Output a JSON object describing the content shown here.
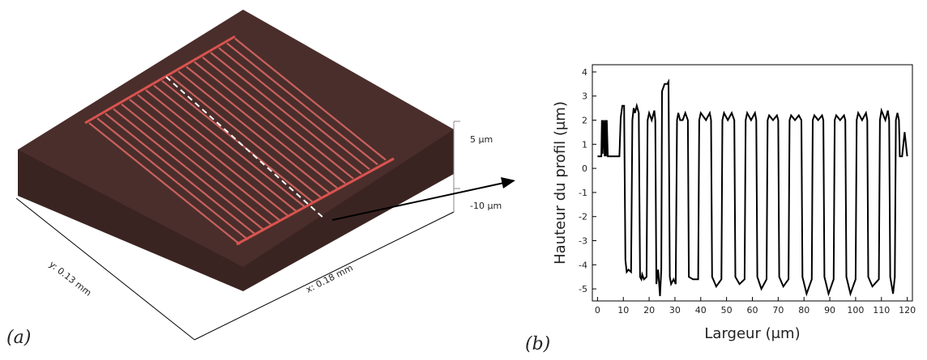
{
  "panel_a": {
    "label": "(a)",
    "scale_top": "5 µm",
    "scale_bottom": "-10 µm",
    "x_size": "x: 0.18 mm",
    "y_size": "y: 0.13 mm"
  },
  "panel_b": {
    "label": "(b)"
  },
  "chart_data": {
    "type": "line",
    "color": "#000000",
    "xlabel": "Largeur (μm)",
    "ylabel": "Hauteur du profil (μm)",
    "xlim": [
      -2,
      122
    ],
    "ylim": [
      -5.5,
      4.3
    ],
    "xticks": [
      0,
      10,
      20,
      30,
      40,
      50,
      60,
      70,
      80,
      90,
      100,
      110,
      120
    ],
    "yticks": [
      -5,
      -4,
      -3,
      -2,
      -1,
      0,
      1,
      2,
      3,
      4
    ],
    "x": [
      0,
      1.5,
      1.7,
      2.0,
      2.3,
      2.8,
      3.0,
      3.3,
      3.6,
      4.0,
      8.5,
      9.0,
      9.6,
      10.3,
      10.8,
      11.3,
      12,
      13,
      13.5,
      14,
      14.5,
      15.2,
      16,
      16.5,
      17,
      17.3,
      18,
      19,
      19.4,
      20.0,
      21,
      22,
      22.4,
      22.8,
      23.5,
      24.2,
      24.7,
      25,
      26,
      27,
      27.5,
      28,
      28.5,
      29.5,
      30.3,
      30.8,
      31.3,
      32,
      33,
      34,
      35,
      35.4,
      37,
      39,
      39.4,
      40,
      42,
      43.5,
      44,
      44.4,
      46,
      48,
      48.4,
      49,
      50.5,
      52,
      53,
      53.4,
      55,
      57,
      57.4,
      58,
      59.5,
      61,
      61.5,
      61.9,
      63.5,
      65.5,
      65.9,
      66.5,
      68,
      69.5,
      70,
      70.4,
      72,
      74,
      74.4,
      75,
      76.5,
      78,
      79,
      79.4,
      81,
      83,
      83.4,
      84,
      85.5,
      87,
      87.5,
      87.9,
      89.5,
      91.5,
      91.9,
      92.5,
      94,
      95.5,
      96,
      96.4,
      98,
      100,
      100.4,
      101,
      102.5,
      104,
      104.5,
      104.9,
      106.5,
      109,
      109.4,
      110,
      111.5,
      112.5,
      113,
      113.4,
      114.5,
      115.2,
      115.6,
      116.2,
      116.8,
      117.1,
      118,
      119,
      120
    ],
    "values": [
      0.5,
      0.5,
      2.0,
      0.6,
      2.0,
      0.5,
      2.0,
      0.5,
      2.0,
      0.5,
      0.5,
      2.1,
      2.6,
      2.6,
      -3.8,
      -4.3,
      -4.2,
      -4.3,
      2.0,
      2.5,
      2.3,
      2.6,
      2.3,
      -4.5,
      -4.6,
      -4.4,
      -4.6,
      -4.5,
      2.0,
      2.3,
      2.0,
      2.4,
      2.0,
      -4.8,
      -4.2,
      -5.3,
      -4.2,
      3.2,
      3.5,
      3.5,
      3.6,
      -4.5,
      -4.8,
      -4.6,
      -4.8,
      2.0,
      2.3,
      2.0,
      2.0,
      2.3,
      2.0,
      -4.5,
      -4.6,
      -4.6,
      2.0,
      2.3,
      2.0,
      2.3,
      2.0,
      -4.5,
      -4.9,
      -4.6,
      2.0,
      2.3,
      2.0,
      2.3,
      2.0,
      -4.5,
      -4.8,
      -4.6,
      2.0,
      2.3,
      2.0,
      2.3,
      2.0,
      -4.5,
      -5.0,
      -4.6,
      2.0,
      2.2,
      2.0,
      2.2,
      2.0,
      -4.5,
      -4.9,
      -4.6,
      2.0,
      2.2,
      2.0,
      2.2,
      2.0,
      -4.5,
      -5.2,
      -4.6,
      2.0,
      2.2,
      2.0,
      2.2,
      2.0,
      -4.5,
      -5.2,
      -4.6,
      2.0,
      2.2,
      2.0,
      2.2,
      2.0,
      -4.5,
      -5.2,
      -4.6,
      2.0,
      2.3,
      2.0,
      2.3,
      2.0,
      -4.5,
      -4.9,
      -4.6,
      2.0,
      2.4,
      2.0,
      2.4,
      2.0,
      -4.5,
      -5.2,
      -4.5,
      2.0,
      2.3,
      2.0,
      0.5,
      0.5,
      1.5,
      0.5
    ]
  }
}
